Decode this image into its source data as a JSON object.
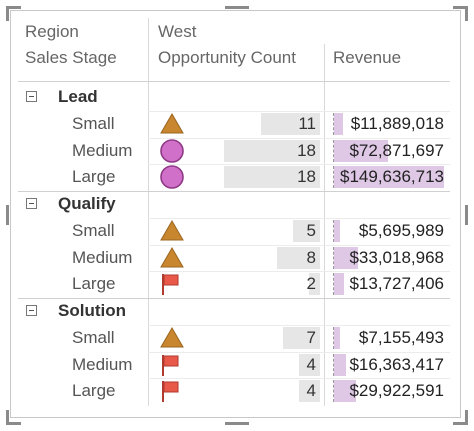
{
  "header": {
    "region_label": "Region",
    "region_value": "West",
    "stage_label": "Sales Stage",
    "count_label": "Opportunity Count",
    "revenue_label": "Revenue"
  },
  "colors": {
    "triangle": "#c8872f",
    "circle": "#d070c8",
    "flag": "#e8594a",
    "revenue_bar": "#dfc8e6",
    "count_bar": "#e6e6e6"
  },
  "groups": [
    {
      "label": "Lead",
      "rows": [
        {
          "label": "Small",
          "icon": "triangle-icon",
          "count": "11",
          "count_value": 11,
          "revenue": "$11,889,018",
          "revenue_value": 11889018
        },
        {
          "label": "Medium",
          "icon": "circle-icon",
          "count": "18",
          "count_value": 18,
          "revenue": "$72,871,697",
          "revenue_value": 72871697
        },
        {
          "label": "Large",
          "icon": "circle-icon",
          "count": "18",
          "count_value": 18,
          "revenue": "$149,636,713",
          "revenue_value": 149636713
        }
      ]
    },
    {
      "label": "Qualify",
      "rows": [
        {
          "label": "Small",
          "icon": "triangle-icon",
          "count": "5",
          "count_value": 5,
          "revenue": "$5,695,989",
          "revenue_value": 5695989
        },
        {
          "label": "Medium",
          "icon": "triangle-icon",
          "count": "8",
          "count_value": 8,
          "revenue": "$33,018,968",
          "revenue_value": 33018968
        },
        {
          "label": "Large",
          "icon": "flag-icon",
          "count": "2",
          "count_value": 2,
          "revenue": "$13,727,406",
          "revenue_value": 13727406
        }
      ]
    },
    {
      "label": "Solution",
      "rows": [
        {
          "label": "Small",
          "icon": "triangle-icon",
          "count": "7",
          "count_value": 7,
          "revenue": "$7,155,493",
          "revenue_value": 7155493
        },
        {
          "label": "Medium",
          "icon": "flag-icon",
          "count": "4",
          "count_value": 4,
          "revenue": "$16,363,417",
          "revenue_value": 16363417
        },
        {
          "label": "Large",
          "icon": "flag-icon",
          "count": "4",
          "count_value": 4,
          "revenue": "$29,922,591",
          "revenue_value": 29922591
        }
      ]
    }
  ]
}
